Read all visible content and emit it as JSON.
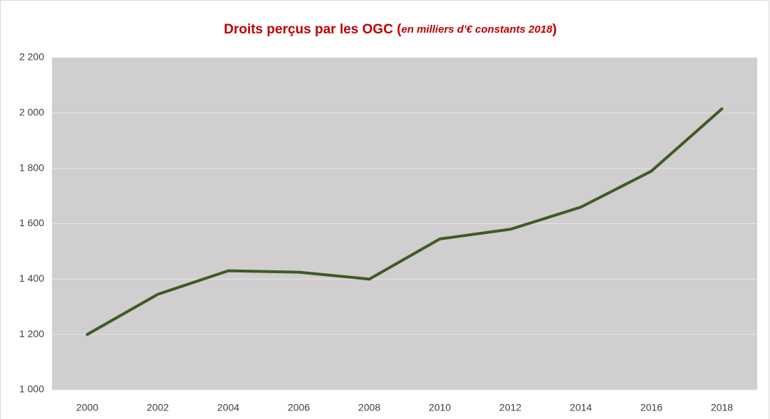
{
  "chart_data": {
    "type": "line",
    "title": [
      "Droits perçus par les OGC (",
      "en milliers  d'€ constants 2018",
      ")"
    ],
    "x": [
      2000,
      2002,
      2004,
      2006,
      2008,
      2010,
      2012,
      2014,
      2016,
      2018
    ],
    "series": [
      {
        "color": "#3f5b24",
        "values": [
          1200,
          1345,
          1430,
          1425,
          1400,
          1545,
          1580,
          1660,
          1790,
          2015
        ]
      }
    ],
    "xlim": [
      1999,
      2019
    ],
    "xticks": [
      2000,
      2002,
      2004,
      2006,
      2008,
      2010,
      2012,
      2014,
      2016,
      2018
    ],
    "ylim": [
      1000,
      2200
    ],
    "yticks": [
      {
        "value": 1000,
        "label": "1 000"
      },
      {
        "value": 1200,
        "label": "1 200"
      },
      {
        "value": 1400,
        "label": "1 400"
      },
      {
        "value": 1600,
        "label": "1 600"
      },
      {
        "value": 1800,
        "label": "1 800"
      },
      {
        "value": 2000,
        "label": "2 000"
      },
      {
        "value": 2200,
        "label": "2 200"
      }
    ],
    "grid": true,
    "plot_background": "#d0cece"
  }
}
